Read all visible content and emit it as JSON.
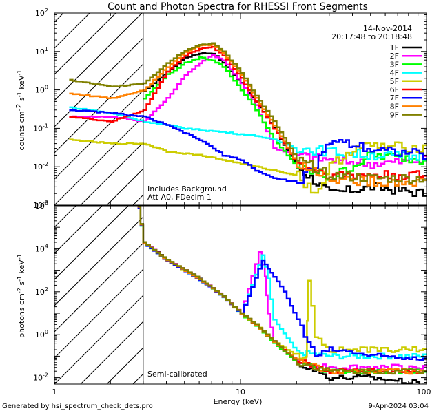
{
  "chart_data": [
    {
      "type": "line",
      "panel": "counts",
      "title": "Count and Photon Spectra for RHESSI Front Segments",
      "xlabel": "Energy (keV)",
      "ylabel": "counts cm^-2 s^-1 keV^-1",
      "ylabel_parts": {
        "a": "counts cm",
        "e1": "-2",
        "b": " s",
        "e2": "-1",
        "c": " keV",
        "e3": "-1"
      },
      "xscale": "log",
      "yscale": "log",
      "xlim": [
        1,
        100
      ],
      "ylim": [
        0.001,
        100
      ],
      "x_ticks": [
        1,
        10,
        100
      ],
      "y_ticks": [
        0.001,
        0.01,
        0.1,
        1,
        10,
        100
      ],
      "y_tick_labels": [
        {
          "m": "10",
          "e": "-3"
        },
        {
          "m": "10",
          "e": "-2"
        },
        {
          "m": "10",
          "e": "-1"
        },
        {
          "m": "10",
          "e": "0"
        },
        {
          "m": "10",
          "e": "1"
        },
        {
          "m": "10",
          "e": "2"
        }
      ],
      "shaded_below_keV": 3,
      "annotations": {
        "date": "14-Nov-2014",
        "time_range": "20:17:48 to 20:18:48",
        "note1": "Includes Background",
        "note2": "Att A0, FDecim 1"
      },
      "legend_position": "top-right",
      "series": [
        {
          "name": "1F",
          "color": "#000000",
          "x": [
            3,
            4,
            5,
            6,
            7,
            8,
            10,
            12,
            15,
            20,
            30,
            50,
            100
          ],
          "values": [
            0.9,
            3,
            7,
            9,
            9,
            5,
            1.5,
            0.5,
            0.1,
            0.01,
            0.002,
            0.003,
            0.002
          ]
        },
        {
          "name": "2F",
          "color": "#ff00ff",
          "x": [
            1.2,
            2,
            3,
            4,
            5,
            6,
            7,
            8,
            10,
            12,
            15,
            20,
            30,
            50,
            100
          ],
          "values": [
            0.2,
            0.2,
            0.15,
            0.6,
            2.5,
            5,
            8,
            6,
            1.5,
            0.4,
            0.03,
            0.02,
            0.015,
            0.012,
            0.015
          ]
        },
        {
          "name": "3F",
          "color": "#00ff00",
          "x": [
            3,
            4,
            5,
            6,
            7,
            8,
            10,
            12,
            15,
            20,
            30,
            50,
            100
          ],
          "values": [
            0.6,
            2.5,
            5,
            7,
            6,
            4,
            1,
            0.3,
            0.05,
            0.01,
            0.005,
            0.02,
            0.015
          ]
        },
        {
          "name": "4F",
          "color": "#00ffff",
          "x": [
            1.2,
            2,
            3,
            4,
            5,
            6,
            8,
            10,
            12,
            15,
            20,
            30,
            50,
            100
          ],
          "values": [
            0.35,
            0.25,
            0.15,
            0.12,
            0.1,
            0.09,
            0.08,
            0.07,
            0.065,
            0.05,
            0.03,
            0.025,
            0.02,
            0.018
          ]
        },
        {
          "name": "5F",
          "color": "#cccc00",
          "x": [
            1.2,
            2,
            3,
            4,
            6,
            8,
            10,
            12,
            15,
            20,
            25,
            30,
            40,
            50,
            100
          ],
          "values": [
            0.05,
            0.04,
            0.04,
            0.025,
            0.02,
            0.015,
            0.012,
            0.01,
            0.008,
            0.006,
            0.002,
            0.01,
            0.03,
            0.035,
            0.03
          ]
        },
        {
          "name": "6F",
          "color": "#ff0000",
          "x": [
            1.2,
            2,
            3,
            4,
            5,
            6,
            7,
            8,
            10,
            12,
            15,
            20,
            30,
            50,
            100
          ],
          "values": [
            0.2,
            0.15,
            0.3,
            3,
            8,
            12,
            13,
            8,
            2,
            0.5,
            0.1,
            0.012,
            0.006,
            0.006,
            0.006
          ]
        },
        {
          "name": "7F",
          "color": "#0000ff",
          "x": [
            1.2,
            2,
            3,
            4,
            6,
            8,
            10,
            12,
            15,
            20,
            25,
            30,
            40,
            50,
            100
          ],
          "values": [
            0.3,
            0.25,
            0.2,
            0.12,
            0.05,
            0.02,
            0.015,
            0.008,
            0.005,
            0.004,
            0.01,
            0.05,
            0.04,
            0.03,
            0.02
          ]
        },
        {
          "name": "8F",
          "color": "#ff8000",
          "x": [
            1.2,
            2,
            3,
            4,
            5,
            6,
            7,
            8,
            10,
            12,
            15,
            20,
            30,
            50,
            100
          ],
          "values": [
            0.8,
            0.6,
            1,
            4,
            10,
            14,
            15,
            9,
            2.5,
            0.6,
            0.12,
            0.012,
            0.005,
            0.004,
            0.004
          ]
        },
        {
          "name": "9F",
          "color": "#808000",
          "x": [
            1.2,
            2,
            3,
            4,
            5,
            6,
            7,
            8,
            10,
            12,
            15,
            20,
            30,
            50,
            100
          ],
          "values": [
            1.8,
            1.2,
            1.5,
            5,
            11,
            15,
            16,
            10,
            2.8,
            0.7,
            0.15,
            0.015,
            0.006,
            0.005,
            0.005
          ]
        }
      ]
    },
    {
      "type": "line",
      "panel": "photons",
      "xlabel": "Energy (keV)",
      "ylabel": "photons cm^-2 s^-1 keV^-1",
      "ylabel_parts": {
        "a": "photons cm",
        "e1": "-2",
        "b": " s",
        "e2": "-1",
        "c": " keV",
        "e3": "-1"
      },
      "xscale": "log",
      "yscale": "log",
      "xlim": [
        1,
        100
      ],
      "ylim": [
        0.005,
        1000000
      ],
      "x_ticks": [
        1,
        10,
        100
      ],
      "y_ticks": [
        0.01,
        1,
        100,
        10000,
        1000000
      ],
      "y_tick_labels": [
        {
          "m": "10",
          "e": "-2"
        },
        {
          "m": "10",
          "e": "0"
        },
        {
          "m": "10",
          "e": "2"
        },
        {
          "m": "10",
          "e": "4"
        },
        {
          "m": "10",
          "e": "6"
        }
      ],
      "shaded_below_keV": 3,
      "annotations": {
        "note": "Semi-calibrated"
      },
      "series": [
        {
          "name": "1F",
          "color": "#000000",
          "x": [
            2.8,
            3,
            4,
            5,
            6,
            7,
            8,
            10,
            12,
            15,
            20,
            30,
            50,
            100
          ],
          "values": [
            1000000,
            20000,
            3000,
            1000,
            400,
            150,
            60,
            10,
            3,
            0.5,
            0.05,
            0.01,
            0.01,
            0.005
          ]
        },
        {
          "name": "2F",
          "color": "#ff00ff",
          "x": [
            2.8,
            3,
            4,
            5,
            6,
            7,
            8,
            10,
            12.5,
            13.5,
            14,
            15,
            20,
            30,
            50,
            100
          ],
          "values": [
            900000,
            20000,
            3000,
            1000,
            400,
            150,
            60,
            10,
            7000,
            500,
            10,
            0.5,
            0.05,
            0.03,
            0.03,
            0.03
          ]
        },
        {
          "name": "3F",
          "color": "#00ff00",
          "x": [
            2.8,
            3,
            4,
            5,
            6,
            7,
            8,
            10,
            12,
            15,
            20,
            30,
            50,
            100
          ],
          "values": [
            800000,
            18000,
            2800,
            900,
            350,
            140,
            55,
            9,
            2.5,
            0.4,
            0.05,
            0.02,
            0.02,
            0.02
          ]
        },
        {
          "name": "4F",
          "color": "#00ffff",
          "x": [
            2.8,
            3,
            4,
            5,
            6,
            7,
            8,
            10,
            13,
            14,
            15,
            20,
            30,
            50,
            100
          ],
          "values": [
            800000,
            18000,
            2800,
            900,
            350,
            140,
            55,
            9,
            5000,
            400,
            5,
            0.15,
            0.1,
            0.1,
            0.1
          ]
        },
        {
          "name": "5F",
          "color": "#cccc00",
          "x": [
            2.8,
            3,
            4,
            5,
            6,
            7,
            8,
            10,
            12,
            15,
            20,
            22.5,
            23,
            25,
            30,
            50,
            100
          ],
          "values": [
            800000,
            18000,
            2800,
            900,
            350,
            140,
            55,
            9,
            3,
            0.5,
            0.1,
            0.1,
            300,
            1,
            0.2,
            0.2,
            0.2
          ]
        },
        {
          "name": "6F",
          "color": "#ff0000",
          "x": [
            2.8,
            3,
            4,
            5,
            6,
            7,
            8,
            10,
            12,
            15,
            20,
            30,
            50,
            100
          ],
          "values": [
            900000,
            19000,
            2900,
            950,
            370,
            145,
            58,
            9.5,
            2.8,
            0.45,
            0.06,
            0.02,
            0.02,
            0.02
          ]
        },
        {
          "name": "7F",
          "color": "#0000ff",
          "x": [
            2.8,
            3,
            4,
            5,
            6,
            7,
            8,
            10,
            13,
            14,
            15,
            17,
            20,
            25,
            30,
            40,
            50,
            100
          ],
          "values": [
            800000,
            18000,
            2800,
            900,
            350,
            140,
            55,
            9,
            3000,
            1200,
            500,
            100,
            5,
            0.1,
            0.2,
            0.15,
            0.1,
            0.08
          ]
        },
        {
          "name": "8F",
          "color": "#ff8000",
          "x": [
            2.8,
            3,
            4,
            5,
            6,
            7,
            8,
            10,
            12,
            15,
            20,
            30,
            50,
            100
          ],
          "values": [
            900000,
            19000,
            2900,
            950,
            370,
            145,
            58,
            9.5,
            2.8,
            0.45,
            0.06,
            0.02,
            0.02,
            0.02
          ]
        },
        {
          "name": "9F",
          "color": "#808000",
          "x": [
            2.8,
            3,
            4,
            5,
            6,
            7,
            8,
            10,
            12,
            15,
            20,
            30,
            50,
            100
          ],
          "values": [
            1000000,
            20000,
            3000,
            1000,
            400,
            150,
            60,
            10,
            3,
            0.5,
            0.05,
            0.02,
            0.02,
            0.02
          ]
        }
      ]
    }
  ],
  "footer": {
    "generated_by": "Generated by hsi_spectrum_check_dets.pro",
    "date": "9-Apr-2024 03:04"
  }
}
